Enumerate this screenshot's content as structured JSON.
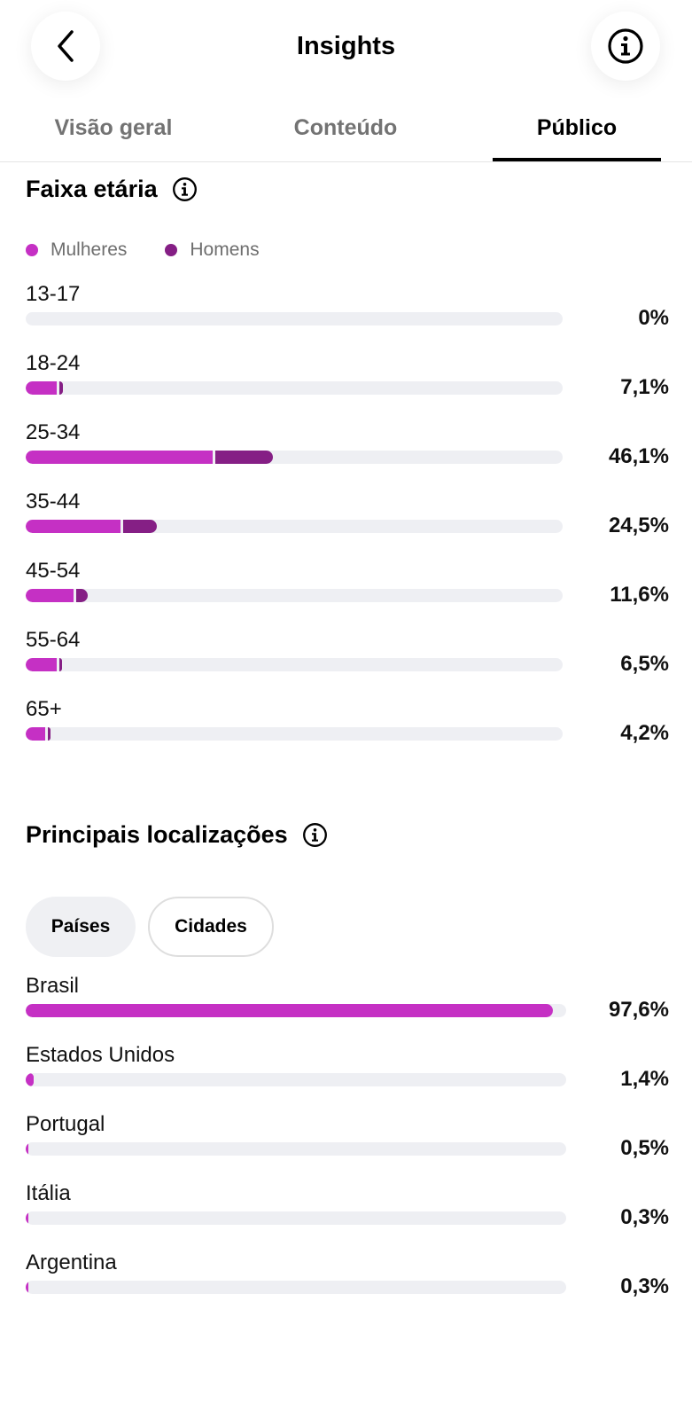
{
  "header": {
    "title": "Insights",
    "back_icon": "chevron-left-icon",
    "info_icon": "info-circle-icon"
  },
  "tabs": [
    {
      "label": "Visão geral",
      "active": false
    },
    {
      "label": "Conteúdo",
      "active": false
    },
    {
      "label": "Público",
      "active": true
    }
  ],
  "colors": {
    "women": "#c530c4",
    "men": "#851f85",
    "track": "#eeeff3"
  },
  "age_section": {
    "title": "Faixa etária",
    "legend": {
      "women": "Mulheres",
      "men": "Homens"
    },
    "rows": [
      {
        "label": "13-17",
        "pct": "0%",
        "women": 0,
        "men": 0
      },
      {
        "label": "18-24",
        "pct": "7,1%",
        "women": 5.8,
        "men": 1.2
      },
      {
        "label": "25-34",
        "pct": "46,1%",
        "women": 34.8,
        "men": 11.3
      },
      {
        "label": "35-44",
        "pct": "24,5%",
        "women": 17.6,
        "men": 6.9
      },
      {
        "label": "45-54",
        "pct": "11,6%",
        "women": 8.9,
        "men": 2.7
      },
      {
        "label": "55-64",
        "pct": "6,5%",
        "women": 5.8,
        "men": 0.7
      },
      {
        "label": "65+",
        "pct": "4,2%",
        "women": 3.6,
        "men": 0.6
      }
    ]
  },
  "locations_section": {
    "title": "Principais localizações",
    "filters": [
      {
        "label": "Países",
        "selected": true
      },
      {
        "label": "Cidades",
        "selected": false
      }
    ],
    "rows": [
      {
        "label": "Brasil",
        "pct": "97,6%",
        "value": 97.6
      },
      {
        "label": "Estados Unidos",
        "pct": "1,4%",
        "value": 1.4
      },
      {
        "label": "Portugal",
        "pct": "0,5%",
        "value": 0.5
      },
      {
        "label": "Itália",
        "pct": "0,3%",
        "value": 0.3
      },
      {
        "label": "Argentina",
        "pct": "0,3%",
        "value": 0.3
      }
    ]
  }
}
